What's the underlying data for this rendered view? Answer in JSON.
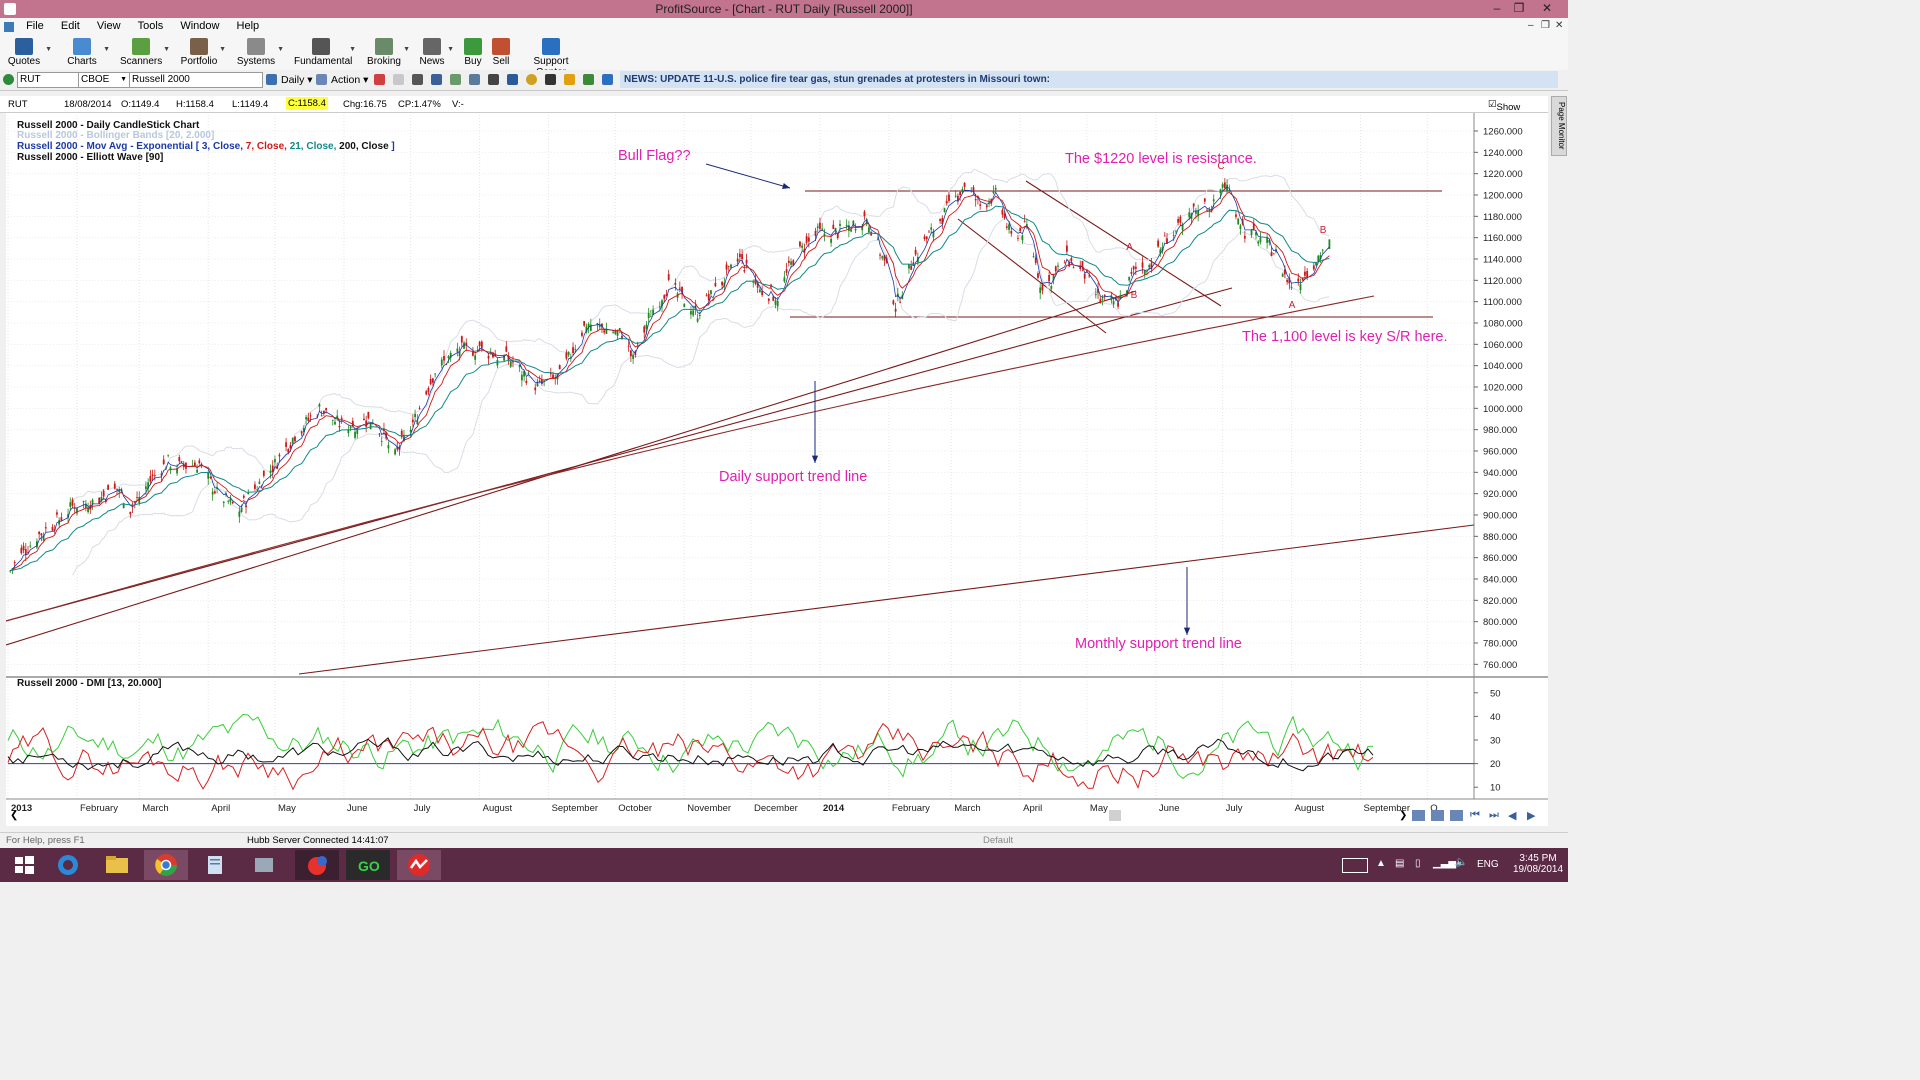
{
  "window": {
    "title": "ProfitSource - [Chart - RUT Daily [Russell 2000]]"
  },
  "menu": [
    "File",
    "Edit",
    "View",
    "Tools",
    "Window",
    "Help"
  ],
  "toolbar": [
    {
      "label": "Quotes",
      "color": "#2b5f9e"
    },
    {
      "label": "Charts",
      "color": "#4a8ad0"
    },
    {
      "label": "Scanners",
      "color": "#5aa040"
    },
    {
      "label": "Portfolio",
      "color": "#7a6048"
    },
    {
      "label": "Systems",
      "color": "#8a8a8a"
    },
    {
      "label": "Fundamental",
      "color": "#555555"
    },
    {
      "label": "Broking",
      "color": "#6a8a6a"
    },
    {
      "label": "News",
      "color": "#666666"
    },
    {
      "label": "Buy",
      "color": "#3c9a3c"
    },
    {
      "label": "Sell",
      "color": "#c05030"
    },
    {
      "label": "Support Center",
      "color": "#2a6fc0"
    }
  ],
  "symbar": {
    "symbol": "RUT",
    "exchange": "CBOE",
    "name": "Russell 2000",
    "period": "Daily",
    "action": "Action",
    "news": "NEWS: UPDATE 11-U.S. police fire tear gas, stun grenades at protesters in Missouri town:"
  },
  "quote": {
    "symbol": "RUT",
    "date": "18/08/2014",
    "open": "O:1149.4",
    "high": "H:1158.4",
    "low": "L:1149.4",
    "close": "C:1158.4",
    "change": "Chg:16.75",
    "change_pct": "CP:1.47%",
    "volume": "V:-",
    "show_last": "Show Last"
  },
  "page_monitor": "Page Monitor",
  "legend": {
    "line1": "Russell 2000 - Daily CandleStick Chart",
    "line2": "Russell 2000 - Bollinger Bands [20, 2.000]",
    "line3_prefix": "Russell 2000 - Mov Avg - Exponential [",
    "ema": [
      {
        "text": "3, Close,",
        "color": "#1a3aa8"
      },
      {
        "text": "7, Close,",
        "color": "#d01818"
      },
      {
        "text": "21, Close,",
        "color": "#108a8a"
      },
      {
        "text": "200, Close",
        "color": "#111111"
      }
    ],
    "line3_suffix": "]",
    "line4": "Russell 2000 - Elliott Wave [90]",
    "dmi": "Russell 2000 - DMI [13, 20.000]"
  },
  "annotations": {
    "bull_flag": "Bull Flag??",
    "resistance": "The $1220 level is resistance.",
    "key_sr": "The 1,100 level is key S/R here.",
    "daily_trend": "Daily support trend line",
    "monthly_trend": "Monthly support trend line"
  },
  "wave_labels": [
    {
      "text": "C",
      "x": "2014-06-30",
      "y": 1226
    },
    {
      "text": "A",
      "x": "2014-05-20",
      "y": 1150
    },
    {
      "text": "B",
      "x": "2014-05-22",
      "y": 1105
    },
    {
      "text": "A",
      "x": "2014-08-01",
      "y": 1096
    },
    {
      "text": "B",
      "x": "2014-08-15",
      "y": 1166
    }
  ],
  "status": {
    "left": "For Help, press F1",
    "server": "Hubb Server Connected 14:41:07",
    "mid": "Default"
  },
  "taskbar": {
    "lang": "ENG",
    "time": "3:45 PM",
    "date": "19/08/2014"
  },
  "chart_data": [
    {
      "type": "candlestick",
      "title": "Russell 2000 - Daily CandleStick Chart",
      "ylim": [
        750,
        1275
      ],
      "y_ticks": [
        "1260.000",
        "1240.000",
        "1220.000",
        "1200.000",
        "1180.000",
        "1160.000",
        "1140.000",
        "1120.000",
        "1100.000",
        "1080.000",
        "1060.000",
        "1040.000",
        "1020.000",
        "1000.000",
        "980.000",
        "960.000",
        "940.000",
        "920.000",
        "900.000",
        "880.000",
        "860.000",
        "840.000",
        "820.000",
        "800.000",
        "780.000",
        "760.000"
      ],
      "x_ticks": [
        "2013",
        "February",
        "March",
        "April",
        "May",
        "June",
        "July",
        "August",
        "September",
        "October",
        "November",
        "December",
        "2014",
        "February",
        "March",
        "April",
        "May",
        "June",
        "July",
        "August",
        "September",
        "O"
      ],
      "close_points": [
        [
          "2013-01-02",
          848
        ],
        [
          "2013-01-07",
          862
        ],
        [
          "2013-01-14",
          880
        ],
        [
          "2013-01-22",
          892
        ],
        [
          "2013-01-31",
          910
        ],
        [
          "2013-02-08",
          912
        ],
        [
          "2013-02-20",
          925
        ],
        [
          "2013-02-25",
          905
        ],
        [
          "2013-03-05",
          930
        ],
        [
          "2013-03-14",
          950
        ],
        [
          "2013-03-20",
          945
        ],
        [
          "2013-03-28",
          948
        ],
        [
          "2013-04-05",
          920
        ],
        [
          "2013-04-15",
          905
        ],
        [
          "2013-04-22",
          925
        ],
        [
          "2013-05-02",
          950
        ],
        [
          "2013-05-10",
          975
        ],
        [
          "2013-05-21",
          1000
        ],
        [
          "2013-05-30",
          985
        ],
        [
          "2013-06-07",
          985
        ],
        [
          "2013-06-14",
          990
        ],
        [
          "2013-06-24",
          955
        ],
        [
          "2013-07-03",
          990
        ],
        [
          "2013-07-12",
          1035
        ],
        [
          "2013-07-22",
          1055
        ],
        [
          "2013-08-01",
          1055
        ],
        [
          "2013-08-08",
          1050
        ],
        [
          "2013-08-15",
          1045
        ],
        [
          "2013-08-27",
          1020
        ],
        [
          "2013-09-06",
          1030
        ],
        [
          "2013-09-18",
          1080
        ],
        [
          "2013-09-26",
          1075
        ],
        [
          "2013-10-04",
          1070
        ],
        [
          "2013-10-09",
          1045
        ],
        [
          "2013-10-17",
          1090
        ],
        [
          "2013-10-25",
          1115
        ],
        [
          "2013-11-07",
          1090
        ],
        [
          "2013-11-15",
          1110
        ],
        [
          "2013-11-26",
          1140
        ],
        [
          "2013-12-05",
          1110
        ],
        [
          "2013-12-13",
          1105
        ],
        [
          "2013-12-20",
          1140
        ],
        [
          "2013-12-31",
          1164
        ],
        [
          "2014-01-09",
          1165
        ],
        [
          "2014-01-22",
          1180
        ],
        [
          "2014-01-31",
          1130
        ],
        [
          "2014-02-04",
          1095
        ],
        [
          "2014-02-12",
          1140
        ],
        [
          "2014-02-20",
          1165
        ],
        [
          "2014-03-04",
          1200
        ],
        [
          "2014-03-07",
          1210
        ],
        [
          "2014-03-14",
          1190
        ],
        [
          "2014-03-21",
          1200
        ],
        [
          "2014-03-28",
          1160
        ],
        [
          "2014-04-04",
          1170
        ],
        [
          "2014-04-11",
          1110
        ],
        [
          "2014-04-22",
          1140
        ],
        [
          "2014-04-30",
          1125
        ],
        [
          "2014-05-07",
          1100
        ],
        [
          "2014-05-15",
          1100
        ],
        [
          "2014-05-23",
          1130
        ],
        [
          "2014-05-30",
          1135
        ],
        [
          "2014-06-06",
          1160
        ],
        [
          "2014-06-13",
          1170
        ],
        [
          "2014-06-20",
          1190
        ],
        [
          "2014-06-27",
          1190
        ],
        [
          "2014-07-01",
          1210
        ],
        [
          "2014-07-03",
          1208
        ],
        [
          "2014-07-11",
          1165
        ],
        [
          "2014-07-18",
          1160
        ],
        [
          "2014-07-25",
          1145
        ],
        [
          "2014-07-31",
          1115
        ],
        [
          "2014-08-07",
          1125
        ],
        [
          "2014-08-12",
          1140
        ],
        [
          "2014-08-18",
          1158
        ]
      ],
      "support_resistance": [
        1220,
        1100
      ]
    },
    {
      "type": "line",
      "title": "Russell 2000 - DMI [13, 20.000]",
      "ylim": [
        5,
        55
      ],
      "y_ticks": [
        "50",
        "40",
        "30",
        "20",
        "10"
      ],
      "threshold": 20,
      "series": []
    }
  ],
  "colors": {
    "title_bar": "#c2738e",
    "annotation": "#e020b0",
    "trend_line": "#7a1a1a",
    "news_bg": "#d4e3f4",
    "taskbar": "#5b2a45"
  }
}
